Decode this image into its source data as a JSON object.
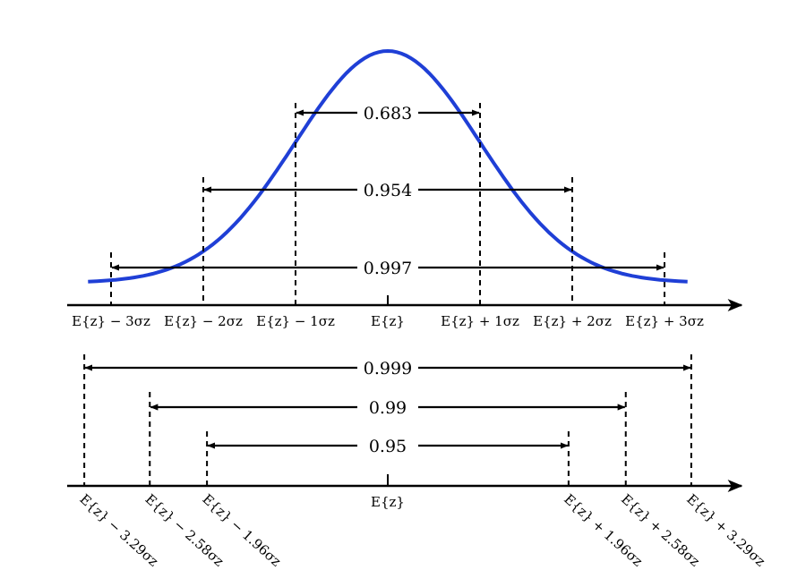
{
  "colors": {
    "curve": "#1f3fd6",
    "ink": "#000000"
  },
  "top_axis": {
    "intervals": [
      {
        "label": "0.683",
        "k": 1
      },
      {
        "label": "0.954",
        "k": 2
      },
      {
        "label": "0.997",
        "k": 3
      }
    ],
    "tick_labels": [
      {
        "text": "E{z} − 3σz",
        "k": -3
      },
      {
        "text": "E{z} − 2σz",
        "k": -2
      },
      {
        "text": "E{z} − 1σz",
        "k": -1
      },
      {
        "text": "E{z}",
        "k": 0
      },
      {
        "text": "E{z} + 1σz",
        "k": 1
      },
      {
        "text": "E{z} + 2σz",
        "k": 2
      },
      {
        "text": "E{z} + 3σz",
        "k": 3
      }
    ]
  },
  "bottom_axis": {
    "intervals": [
      {
        "label": "0.999",
        "k": 3.29
      },
      {
        "label": "0.99",
        "k": 2.58
      },
      {
        "label": "0.95",
        "k": 1.96
      }
    ],
    "center_label": "E{z}",
    "tick_labels": [
      {
        "text": "E{z} − 3.29σz",
        "k": -3.29
      },
      {
        "text": "E{z} − 2.58σz",
        "k": -2.58
      },
      {
        "text": "E{z} − 1.96σz",
        "k": -1.96
      },
      {
        "text": "E{z} + 1.96σz",
        "k": 1.96
      },
      {
        "text": "E{z} + 2.58σz",
        "k": 2.58
      },
      {
        "text": "E{z} + 3.29σz",
        "k": 3.29
      }
    ]
  }
}
